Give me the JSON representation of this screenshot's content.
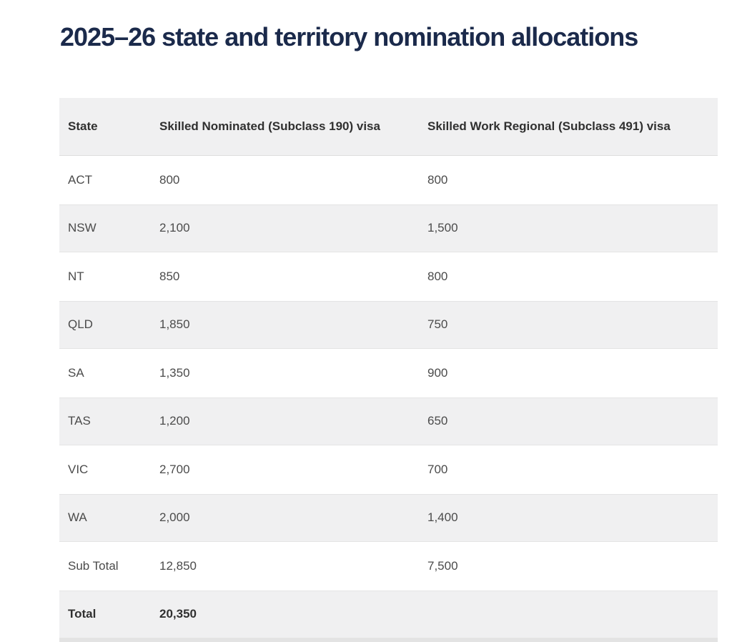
{
  "page": {
    "title": "2025–26 state and territory nomination allocations"
  },
  "table": {
    "columns": [
      {
        "key": "state",
        "label": "State"
      },
      {
        "key": "sc190",
        "label": "Skilled Nominated (Subclass 190) visa"
      },
      {
        "key": "sc491",
        "label": "Skilled Work Regional (Subclass 491) visa"
      }
    ],
    "rows": [
      {
        "state": "ACT",
        "sc190": "800",
        "sc491": "800"
      },
      {
        "state": "NSW",
        "sc190": "2,100",
        "sc491": "1,500"
      },
      {
        "state": "NT",
        "sc190": "850",
        "sc491": "800"
      },
      {
        "state": "QLD",
        "sc190": "1,850",
        "sc491": "750"
      },
      {
        "state": "SA",
        "sc190": "1,350",
        "sc491": "900"
      },
      {
        "state": "TAS",
        "sc190": "1,200",
        "sc491": "650"
      },
      {
        "state": "VIC",
        "sc190": "2,700",
        "sc491": "700"
      },
      {
        "state": "WA",
        "sc190": "2,000",
        "sc491": "1,400"
      },
      {
        "state": "Sub Total",
        "sc190": "12,850",
        "sc491": "7,500"
      },
      {
        "state": "Total",
        "sc190": "20,350",
        "sc491": "",
        "is_total": true
      }
    ]
  },
  "colors": {
    "title_navy": "#1b2a4b",
    "row_stripe_gray": "#f0f0f1",
    "header_text": "#303030",
    "body_text": "#4b4b4b",
    "table_bottom_edge": "#e3e3e3",
    "page_background": "#ffffff"
  }
}
